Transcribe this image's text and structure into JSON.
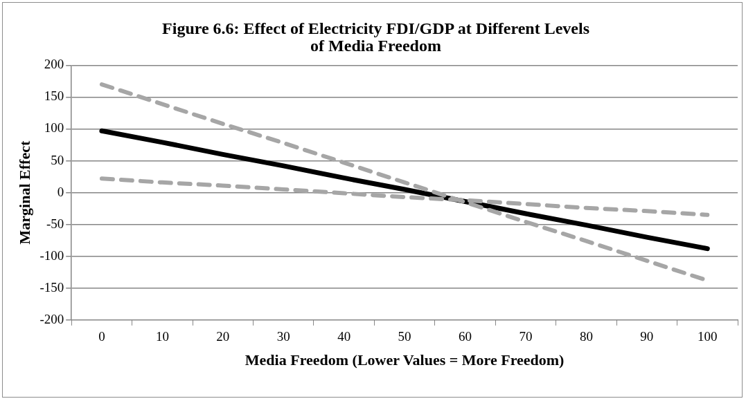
{
  "chart_data": {
    "type": "line",
    "title": "Figure 6.6: Effect of Electricity FDI/GDP at Different Levels of Media Freedom",
    "xlabel": "Media Freedom (Lower Values = More Freedom)",
    "ylabel": "Marginal Effect",
    "categories": [
      "0",
      "10",
      "20",
      "30",
      "40",
      "50",
      "60",
      "70",
      "80",
      "90",
      "100"
    ],
    "series": [
      {
        "color": "#a6a6a6",
        "line_style": "dashed",
        "values": [
          170,
          139,
          108,
          78,
          47,
          16,
          -15,
          -46,
          -76,
          -107,
          -138
        ]
      },
      {
        "color": "#a6a6a6",
        "line_style": "dashed",
        "values": [
          22,
          16,
          11,
          5,
          -1,
          -7,
          -12,
          -18,
          -24,
          -29,
          -35
        ]
      },
      {
        "color": "#000000",
        "line_style": "solid",
        "values": [
          97,
          79,
          60,
          42,
          23,
          5,
          -14,
          -33,
          -51,
          -70,
          -88
        ]
      }
    ],
    "ylim": [
      -200,
      200
    ],
    "yticks": [
      -200,
      -150,
      -100,
      -50,
      0,
      50,
      100,
      150,
      200
    ],
    "grid": "y",
    "legend": false,
    "marker": "none"
  }
}
